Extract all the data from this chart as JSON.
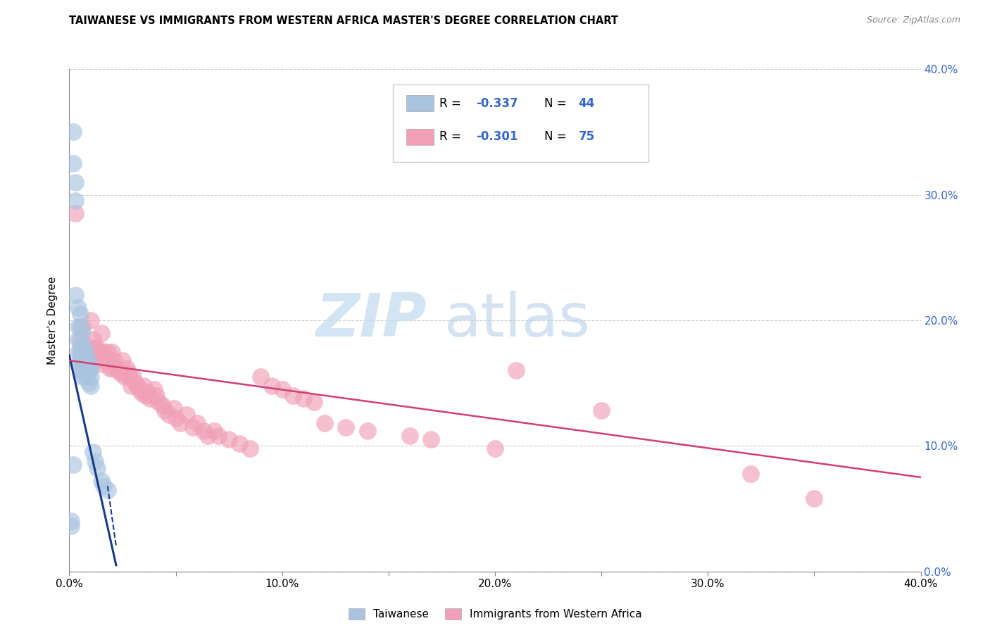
{
  "title": "TAIWANESE VS IMMIGRANTS FROM WESTERN AFRICA MASTER'S DEGREE CORRELATION CHART",
  "source": "Source: ZipAtlas.com",
  "ylabel": "Master's Degree",
  "xlim": [
    0.0,
    0.4
  ],
  "ylim": [
    0.0,
    0.4
  ],
  "color_blue": "#aac4e0",
  "color_pink": "#f0a0b8",
  "color_blue_line": "#1a3a8a",
  "color_pink_line": "#d04070",
  "color_right_axis": "#3366cc",
  "watermark_zip": "ZIP",
  "watermark_atlas": "atlas",
  "legend_label1": "Taiwanese",
  "legend_label2": "Immigrants from Western Africa",
  "tw_trendline_x": [
    0.0,
    0.022
  ],
  "tw_trendline_y": [
    0.172,
    0.005
  ],
  "wa_trendline_x": [
    0.0,
    0.4
  ],
  "wa_trendline_y": [
    0.168,
    0.075
  ],
  "taiwanese_x": [
    0.001,
    0.001,
    0.002,
    0.002,
    0.002,
    0.003,
    0.003,
    0.003,
    0.004,
    0.004,
    0.004,
    0.004,
    0.004,
    0.005,
    0.005,
    0.005,
    0.005,
    0.005,
    0.005,
    0.006,
    0.006,
    0.006,
    0.006,
    0.006,
    0.006,
    0.007,
    0.007,
    0.007,
    0.007,
    0.008,
    0.008,
    0.008,
    0.009,
    0.009,
    0.009,
    0.01,
    0.01,
    0.01,
    0.011,
    0.012,
    0.013,
    0.015,
    0.016,
    0.018
  ],
  "taiwanese_y": [
    0.04,
    0.036,
    0.35,
    0.325,
    0.085,
    0.31,
    0.295,
    0.22,
    0.21,
    0.195,
    0.185,
    0.175,
    0.165,
    0.205,
    0.195,
    0.18,
    0.175,
    0.168,
    0.16,
    0.19,
    0.178,
    0.172,
    0.165,
    0.16,
    0.155,
    0.178,
    0.17,
    0.162,
    0.155,
    0.172,
    0.165,
    0.158,
    0.165,
    0.158,
    0.15,
    0.162,
    0.155,
    0.148,
    0.095,
    0.088,
    0.082,
    0.072,
    0.068,
    0.065
  ],
  "western_africa_x": [
    0.003,
    0.005,
    0.005,
    0.006,
    0.007,
    0.008,
    0.009,
    0.01,
    0.01,
    0.011,
    0.012,
    0.012,
    0.013,
    0.014,
    0.015,
    0.015,
    0.016,
    0.017,
    0.018,
    0.019,
    0.02,
    0.02,
    0.021,
    0.022,
    0.023,
    0.024,
    0.025,
    0.026,
    0.027,
    0.028,
    0.028,
    0.029,
    0.03,
    0.031,
    0.032,
    0.033,
    0.034,
    0.035,
    0.036,
    0.037,
    0.038,
    0.04,
    0.041,
    0.042,
    0.044,
    0.045,
    0.047,
    0.049,
    0.05,
    0.052,
    0.055,
    0.058,
    0.06,
    0.063,
    0.065,
    0.068,
    0.07,
    0.075,
    0.08,
    0.085,
    0.09,
    0.095,
    0.1,
    0.105,
    0.11,
    0.115,
    0.12,
    0.13,
    0.14,
    0.16,
    0.17,
    0.2,
    0.21,
    0.25,
    0.32,
    0.35
  ],
  "western_africa_y": [
    0.285,
    0.185,
    0.175,
    0.195,
    0.175,
    0.18,
    0.175,
    0.2,
    0.172,
    0.185,
    0.178,
    0.168,
    0.178,
    0.175,
    0.19,
    0.165,
    0.175,
    0.168,
    0.175,
    0.162,
    0.175,
    0.162,
    0.168,
    0.162,
    0.16,
    0.158,
    0.168,
    0.155,
    0.162,
    0.155,
    0.158,
    0.148,
    0.155,
    0.15,
    0.148,
    0.145,
    0.142,
    0.148,
    0.14,
    0.142,
    0.138,
    0.145,
    0.14,
    0.135,
    0.132,
    0.128,
    0.125,
    0.13,
    0.122,
    0.118,
    0.125,
    0.115,
    0.118,
    0.112,
    0.108,
    0.112,
    0.108,
    0.105,
    0.102,
    0.098,
    0.155,
    0.148,
    0.145,
    0.14,
    0.138,
    0.135,
    0.118,
    0.115,
    0.112,
    0.108,
    0.105,
    0.098,
    0.16,
    0.128,
    0.078,
    0.058
  ]
}
